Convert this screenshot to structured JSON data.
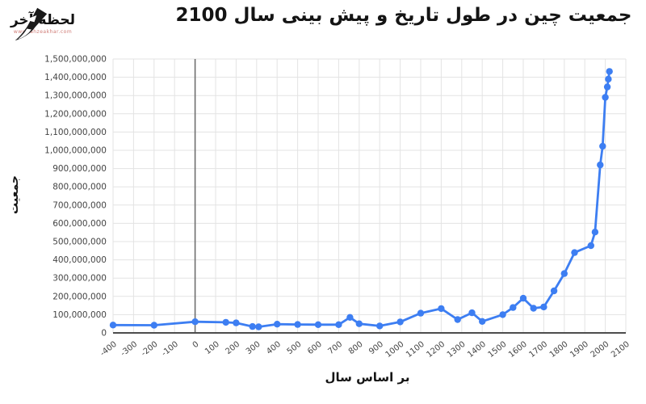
{
  "logo": {
    "brand": "لحظه آخر",
    "website": "www.lahzeakhar.com"
  },
  "chart_data": {
    "type": "line",
    "title": "جمعیت چین در طول تاریخ و پیش بینی سال 2100",
    "xlabel": "بر اساس سال",
    "ylabel": "جمعیت",
    "xlim": [
      -400,
      2100
    ],
    "ylim": [
      0,
      1500000000
    ],
    "grid": true,
    "legend_position": "none",
    "baseline_x": 0,
    "x_ticks": [
      -400,
      -300,
      -200,
      -100,
      0,
      100,
      200,
      300,
      400,
      500,
      600,
      700,
      800,
      900,
      1000,
      1100,
      1200,
      1300,
      1400,
      1500,
      1600,
      1700,
      1800,
      1900,
      2000,
      2100
    ],
    "y_ticks": [
      0,
      100000000,
      200000000,
      300000000,
      400000000,
      500000000,
      600000000,
      700000000,
      800000000,
      900000000,
      1000000000,
      1100000000,
      1200000000,
      1300000000,
      1400000000,
      1500000000
    ],
    "points": [
      [
        -400,
        43000000
      ],
      [
        -200,
        42000000
      ],
      [
        0,
        61000000
      ],
      [
        150,
        58000000
      ],
      [
        200,
        55000000
      ],
      [
        280,
        35000000
      ],
      [
        310,
        33000000
      ],
      [
        400,
        48000000
      ],
      [
        500,
        46000000
      ],
      [
        600,
        45000000
      ],
      [
        700,
        45000000
      ],
      [
        755,
        85000000
      ],
      [
        800,
        50000000
      ],
      [
        900,
        38000000
      ],
      [
        1000,
        60000000
      ],
      [
        1100,
        108000000
      ],
      [
        1200,
        133000000
      ],
      [
        1280,
        73000000
      ],
      [
        1350,
        110000000
      ],
      [
        1400,
        63000000
      ],
      [
        1500,
        100000000
      ],
      [
        1550,
        139000000
      ],
      [
        1600,
        190000000
      ],
      [
        1650,
        135000000
      ],
      [
        1700,
        142000000
      ],
      [
        1750,
        230000000
      ],
      [
        1800,
        325000000
      ],
      [
        1850,
        440000000
      ],
      [
        1930,
        478000000
      ],
      [
        1950,
        552000000
      ],
      [
        1975,
        920000000
      ],
      [
        1987,
        1022000000
      ],
      [
        2000,
        1290000000
      ],
      [
        2010,
        1347000000
      ],
      [
        2015,
        1390000000
      ],
      [
        2020,
        1432000000
      ]
    ],
    "colors": {
      "line": "#3d7ef2",
      "point": "#3d7ef2",
      "grid": "#e3e3e3",
      "x_axis": "#4d4d4d",
      "zero_baseline": "#6e6e6e",
      "tick_label": "#444444",
      "background": "#ffffff"
    }
  }
}
